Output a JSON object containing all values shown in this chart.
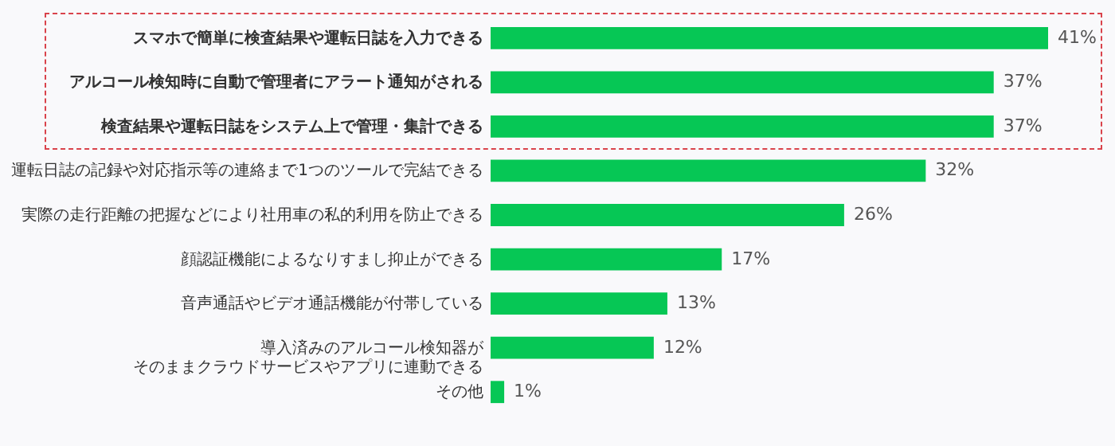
{
  "chart_data": {
    "type": "bar",
    "orientation": "horizontal",
    "categories": [
      "スマホで簡単に検査結果や運転日誌を入力できる",
      "アルコール検知時に自動で管理者にアラート通知がされる",
      "検査結果や運転日誌をシステム上で管理・集計できる",
      "運転日誌の記録や対応指示等の連絡まで1つのツールで完結できる",
      "実際の走行距離の把握などにより社用車の私的利用を防止できる",
      "顔認証機能によるなりすまし抑止ができる",
      "音声通話やビデオ通話機能が付帯している",
      "導入済みのアルコール検知器がそのままクラウドサービスやアプリに連動できる",
      "その他"
    ],
    "values": [
      41,
      37,
      37,
      32,
      26,
      17,
      13,
      12,
      1
    ],
    "value_labels": [
      "41%",
      "37%",
      "37%",
      "32%",
      "26%",
      "17%",
      "13%",
      "12%",
      "1%"
    ],
    "color": "#06c755"
  }
}
